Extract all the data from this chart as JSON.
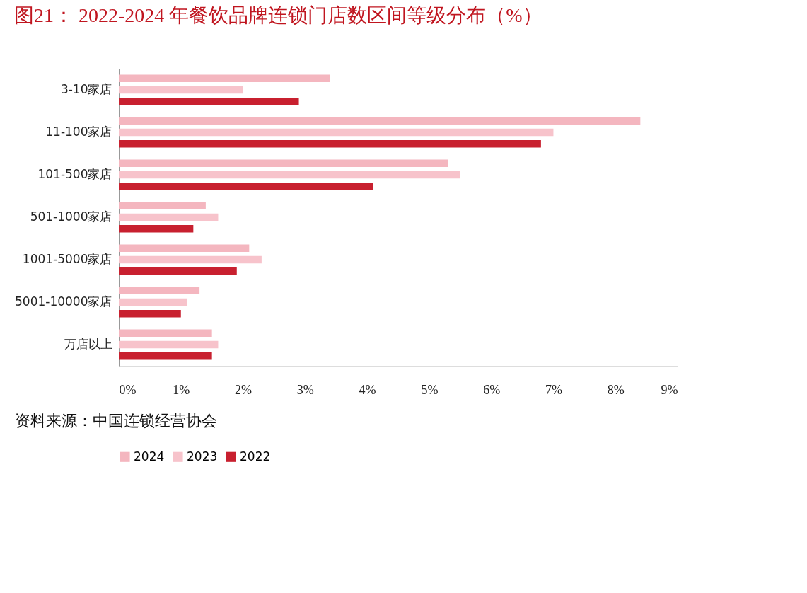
{
  "chart_data": {
    "type": "bar",
    "orientation": "horizontal",
    "title": "图21：  2022-2024 年餐饮品牌连锁门店数区间等级分布（%）",
    "categories": [
      "3-10家店",
      "11-100家店",
      "101-500家店",
      "501-1000家店",
      "1001-5000家店",
      "5001-10000家店",
      "万店以上"
    ],
    "series": [
      {
        "name": "2024",
        "color": "#f4b6bf",
        "values": [
          3.4,
          8.4,
          5.3,
          1.4,
          2.1,
          1.3,
          1.5
        ]
      },
      {
        "name": "2023",
        "color": "#f7c3cb",
        "values": [
          2.0,
          7.0,
          5.5,
          1.6,
          2.3,
          1.1,
          1.6
        ]
      },
      {
        "name": "2022",
        "color": "#c8202f",
        "values": [
          2.9,
          6.8,
          4.1,
          1.2,
          1.9,
          1.0,
          1.5
        ]
      }
    ],
    "xlim": [
      0,
      9
    ],
    "xticks": [
      {
        "value": 0,
        "label": "0%"
      },
      {
        "value": 1,
        "label": "1%"
      },
      {
        "value": 2,
        "label": "2%"
      },
      {
        "value": 3,
        "label": "3%"
      },
      {
        "value": 4,
        "label": "4%"
      },
      {
        "value": 5,
        "label": "5%"
      },
      {
        "value": 6,
        "label": "6%"
      },
      {
        "value": 7,
        "label": "7%"
      },
      {
        "value": 8,
        "label": "8%"
      },
      {
        "value": 9,
        "label": "9%"
      }
    ],
    "grid": false,
    "legend": "bottom",
    "annotations": [
      "资料来源：中国连锁经营协会"
    ]
  }
}
